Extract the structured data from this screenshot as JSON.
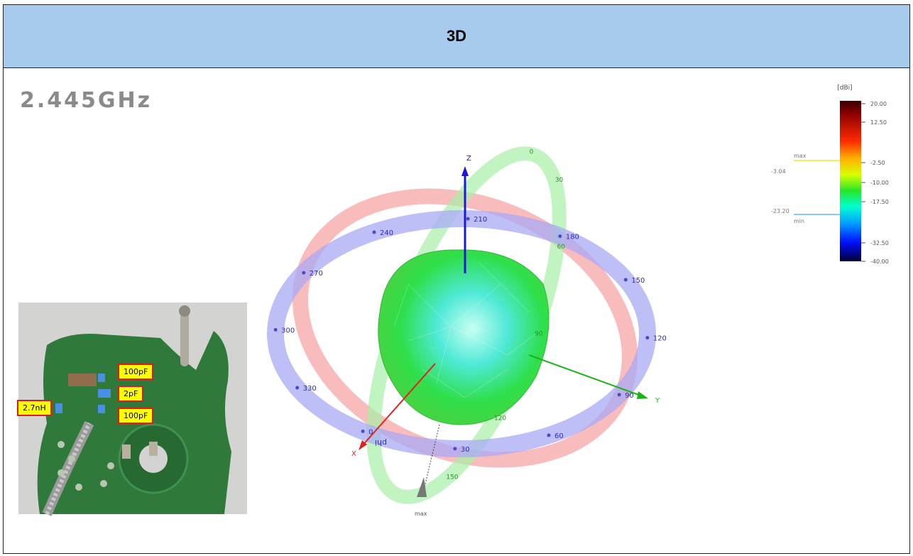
{
  "header": {
    "title": "3D"
  },
  "frequency": "2.445GHz",
  "board": {
    "labels": {
      "c1": "100pF",
      "c2": "2pF",
      "c3": "100pF",
      "l1": "2.7nH"
    }
  },
  "color_scale": {
    "unit": "[dBi]",
    "ticks": [
      "20.00",
      "12.50",
      "-2.50",
      "-10.00",
      "-17.50",
      "-32.50",
      "-40.00"
    ],
    "max_label": "max",
    "max_value": "-3.04",
    "min_label": "min",
    "min_value": "-23.20",
    "max_marker_color": "#e6e600",
    "min_marker_color": "#3fa9f5"
  },
  "pattern": {
    "axis_labels": {
      "x": "X",
      "y": "Y",
      "z": "Z"
    },
    "phi_ring_ticks": [
      "210",
      "180",
      "150",
      "120",
      "90",
      "60",
      "30",
      "0",
      "330",
      "300",
      "270",
      "240"
    ],
    "phi_label": "phi",
    "theta_ring_ticks": [
      "0",
      "30",
      "60",
      "90",
      "120",
      "150"
    ],
    "max_label": "max",
    "colors": {
      "phi_ring": "#a9a9f5",
      "xz_ring": "#f5a0a0",
      "yz_ring": "#a8f0a8",
      "x_axis": "#e02020",
      "y_axis": "#19b319",
      "z_axis": "#1a1ad6",
      "surface": "#3ee84a"
    }
  }
}
